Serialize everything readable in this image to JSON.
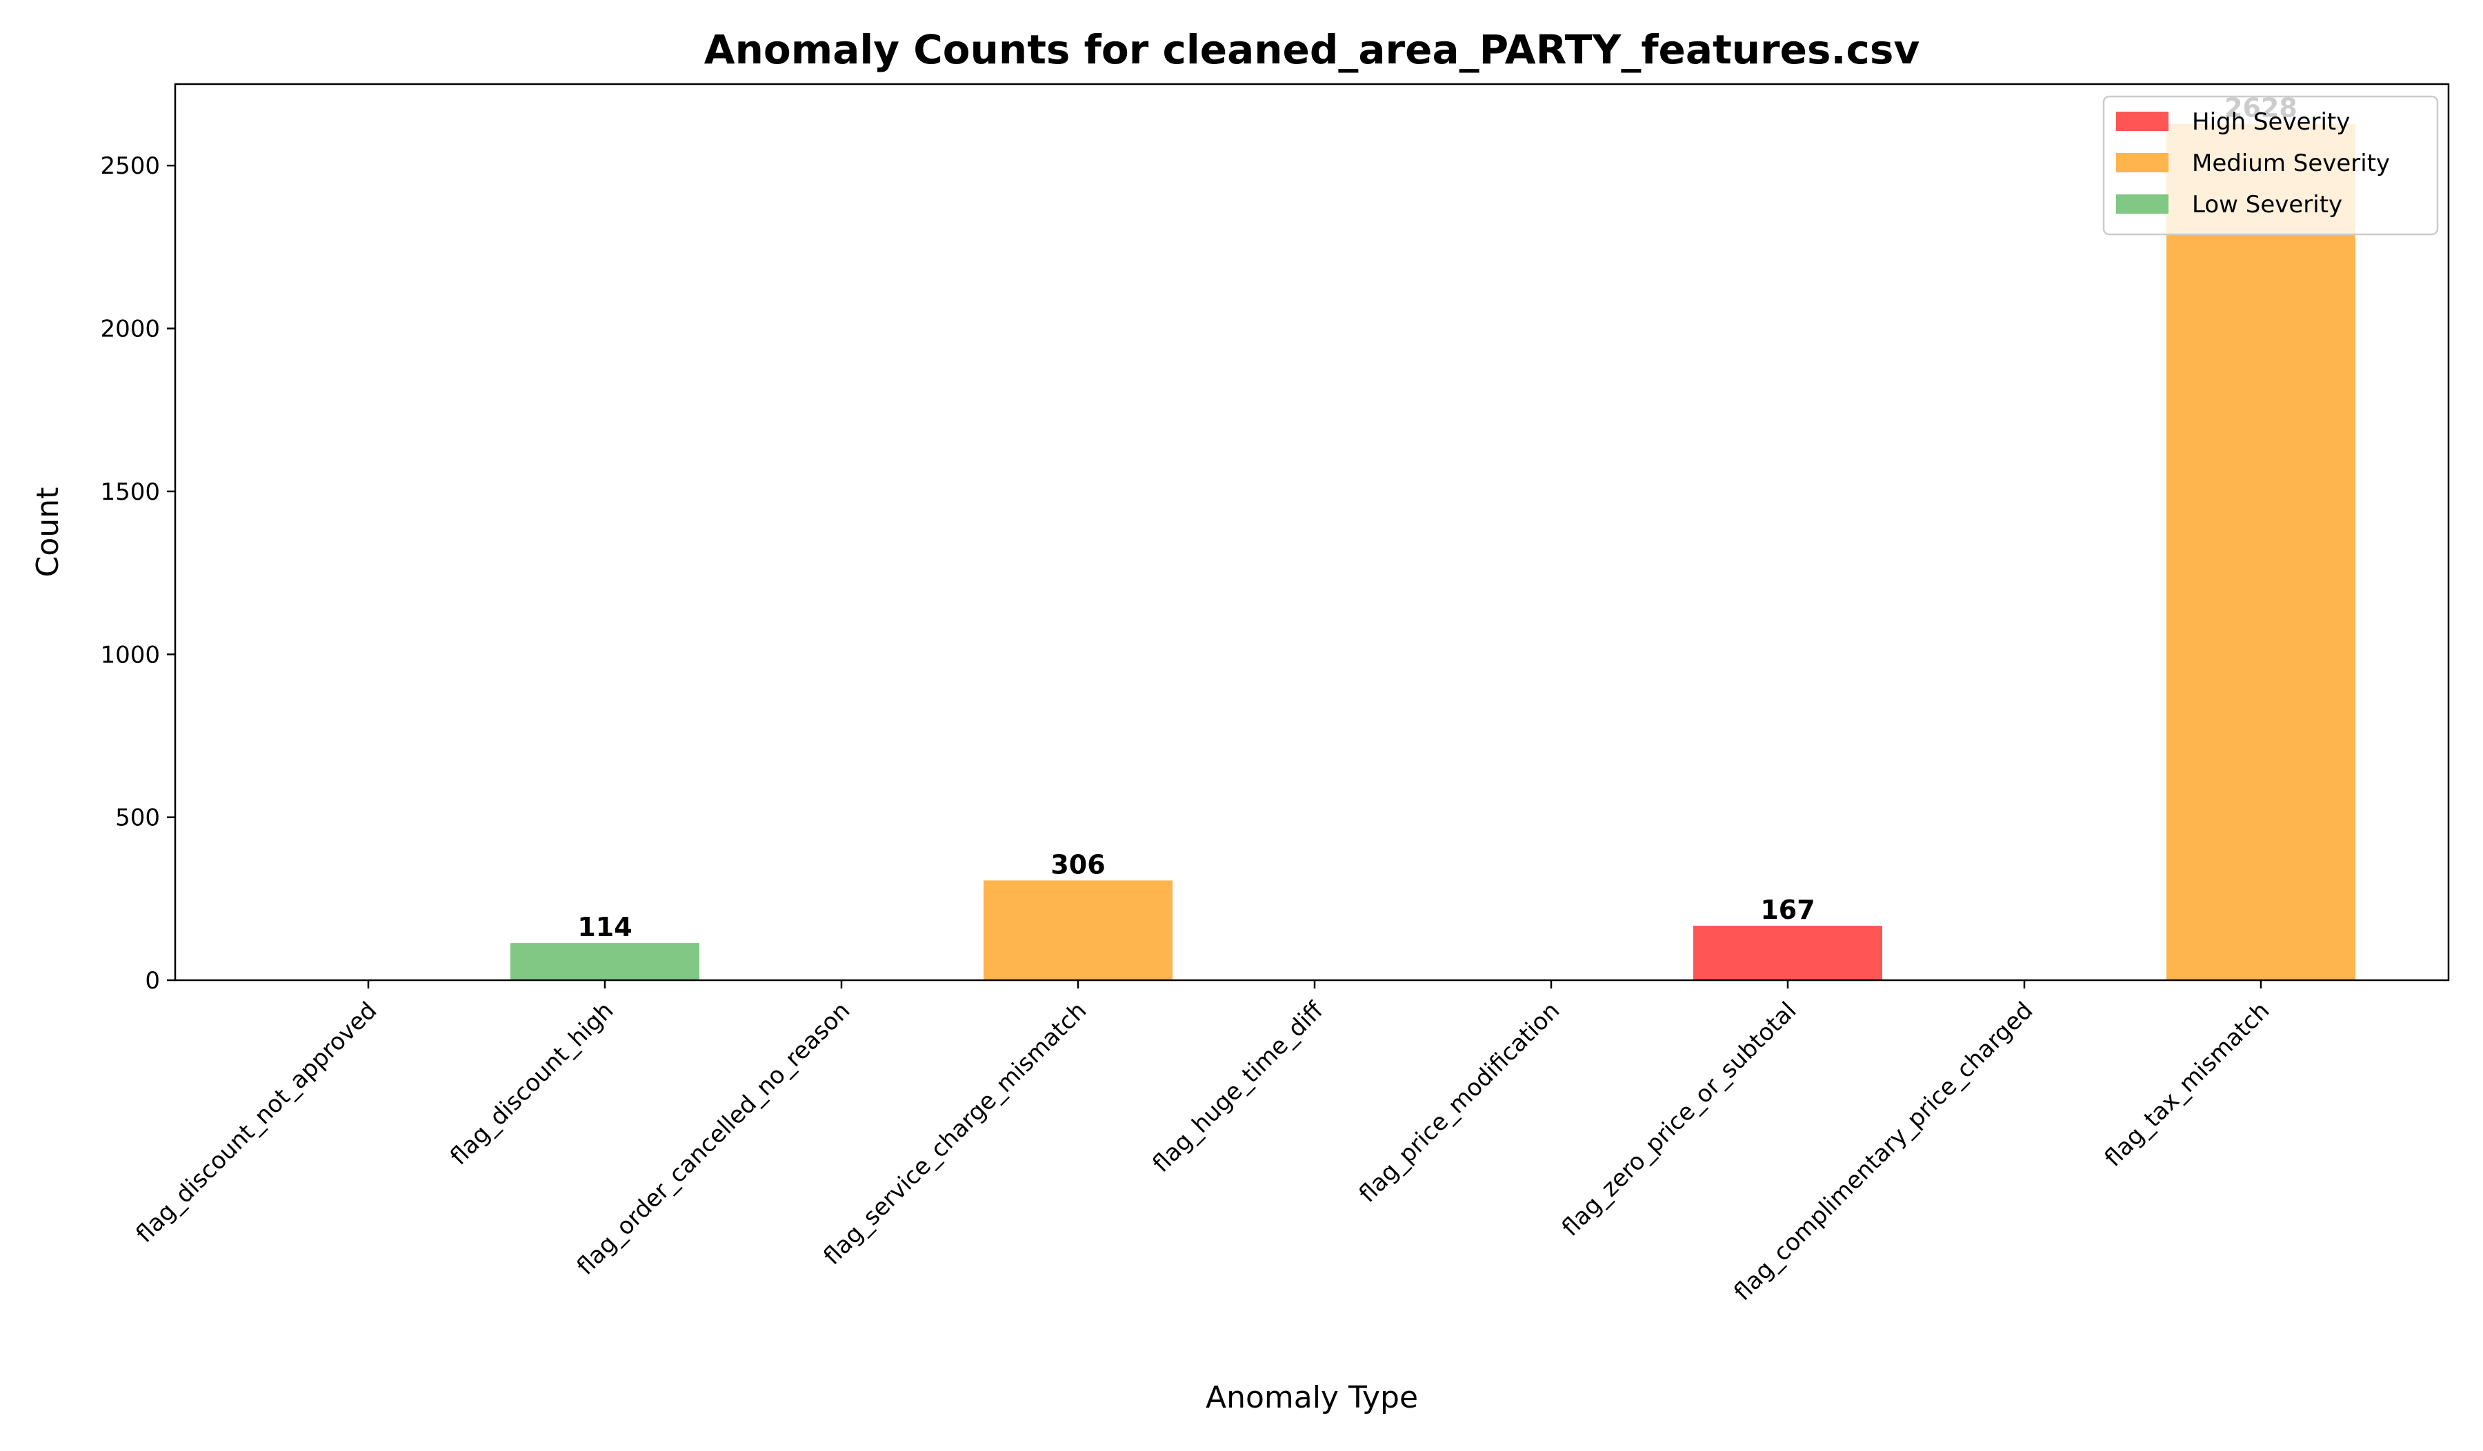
{
  "chart_data": {
    "type": "bar",
    "title": "Anomaly Counts for cleaned_area_PARTY_features.csv",
    "xlabel": "Anomaly Type",
    "ylabel": "Count",
    "ylim": [
      0,
      2750
    ],
    "yticks": [
      0,
      500,
      1000,
      1500,
      2000,
      2500
    ],
    "grid": false,
    "legend_position": "top-right",
    "legend": [
      {
        "label": "High Severity",
        "color": "#ff5555"
      },
      {
        "label": "Medium Severity",
        "color": "#ffb54d"
      },
      {
        "label": "Low Severity",
        "color": "#80c883"
      }
    ],
    "categories": [
      "flag_discount_not_approved",
      "flag_discount_high",
      "flag_order_cancelled_no_reason",
      "flag_service_charge_mismatch",
      "flag_huge_time_diff",
      "flag_price_modification",
      "flag_zero_price_or_subtotal",
      "flag_complimentary_price_charged",
      "flag_tax_mismatch"
    ],
    "values": [
      0,
      114,
      0,
      306,
      0,
      0,
      167,
      0,
      2628
    ],
    "severity": [
      "high",
      "low",
      "high",
      "medium",
      "medium",
      "medium",
      "high",
      "high",
      "medium"
    ],
    "data_labels": [
      "",
      "114",
      "",
      "306",
      "",
      "",
      "167",
      "",
      "2628"
    ]
  }
}
